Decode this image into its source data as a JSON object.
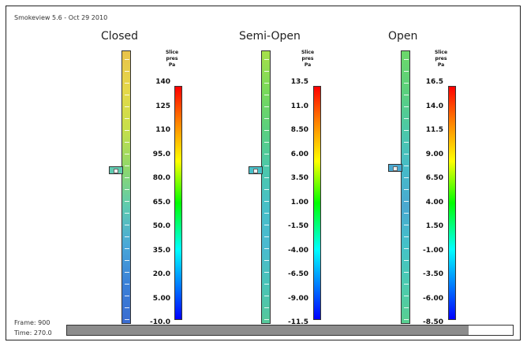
{
  "window": {
    "app_title": "Smokeview 5.6 - Oct 29 2010"
  },
  "slice_label_lines": [
    "Slice",
    "pres",
    "Pa"
  ],
  "panels": [
    {
      "title": "Closed",
      "ticks": [
        "140",
        "125",
        "110",
        "95.0",
        "80.0",
        "65.0",
        "50.0",
        "35.0",
        "20.0",
        "5.00",
        "-10.0"
      ],
      "column_gradient": [
        "#e8c24a",
        "#e5d84a",
        "#c7df4a",
        "#8fd86a",
        "#5fcbb0",
        "#4aa8d8",
        "#3a80d8",
        "#3a6cd0"
      ]
    },
    {
      "title": "Semi-Open",
      "ticks": [
        "13.5",
        "11.0",
        "8.50",
        "6.00",
        "3.50",
        "1.00",
        "-1.50",
        "-4.00",
        "-6.50",
        "-9.00",
        "-11.5"
      ],
      "column_gradient": [
        "#a6e04a",
        "#7ada5a",
        "#5bd07e",
        "#4cc8aa",
        "#48c0c8",
        "#4abad0",
        "#4ac4b8",
        "#56c89a"
      ]
    },
    {
      "title": "Open",
      "ticks": [
        "16.5",
        "14.0",
        "11.5",
        "9.00",
        "6.50",
        "4.00",
        "1.50",
        "-1.00",
        "-3.50",
        "-6.00",
        "-8.50"
      ],
      "column_gradient": [
        "#6cd86a",
        "#5cd07c",
        "#4cc8a6",
        "#46bcc8",
        "#4aa8d0",
        "#44c2c8",
        "#4ccab0",
        "#58cf90"
      ]
    }
  ],
  "status": {
    "frame": "Frame: 900",
    "time": "Time: 270.0"
  },
  "time_progress": 0.9
}
